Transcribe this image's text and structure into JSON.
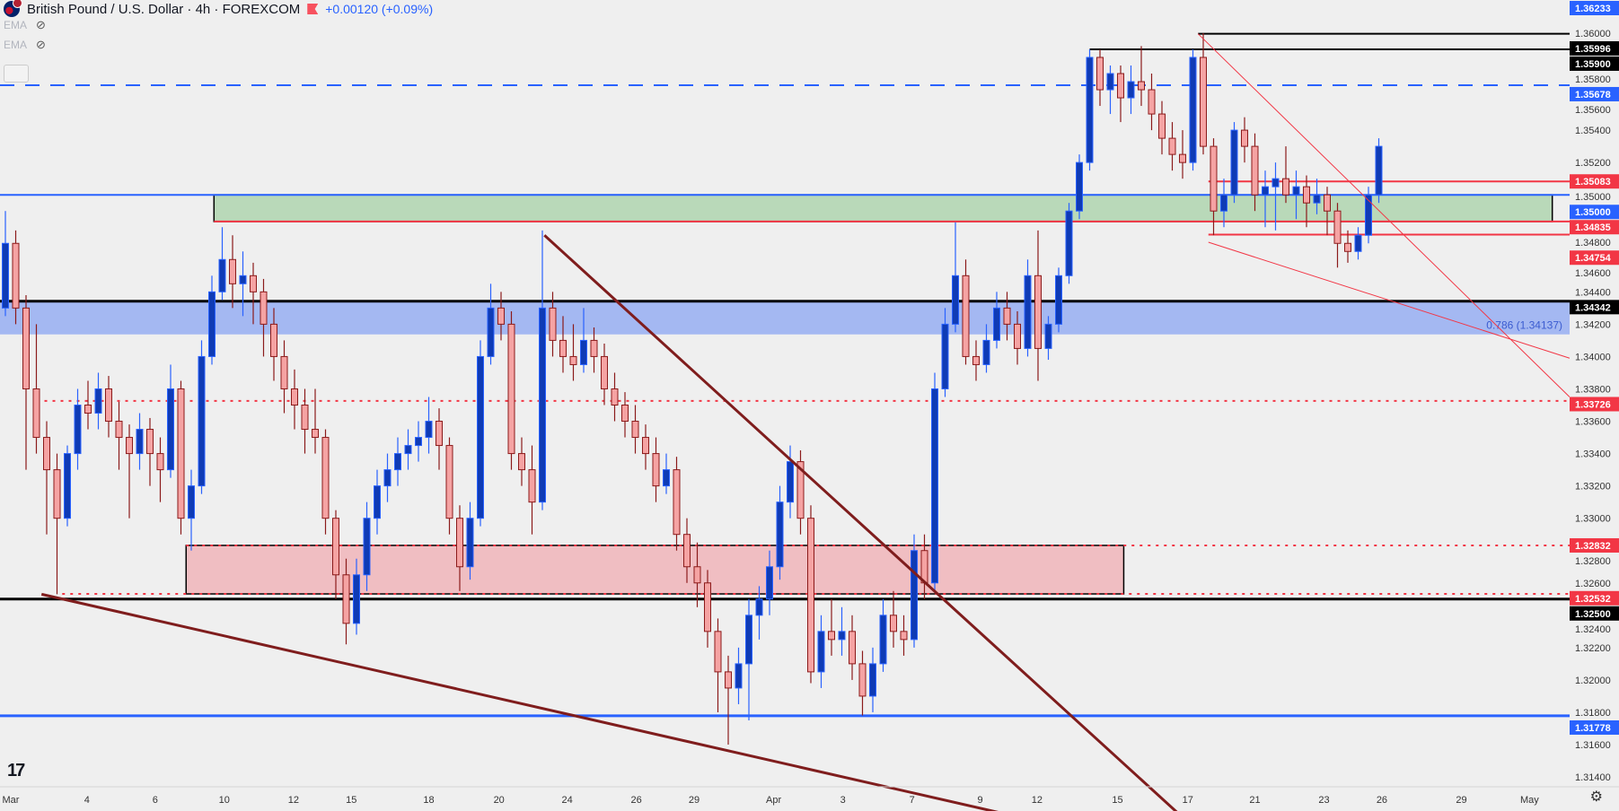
{
  "header": {
    "title": "British Pound / U.S. Dollar · 4h · FOREXCOM",
    "change": "+0.00120 (+0.09%)",
    "indicators": [
      {
        "label": "EMA",
        "icon": "eye-slash-icon"
      },
      {
        "label": "EMA",
        "icon": "eye-slash-icon"
      }
    ]
  },
  "colors": {
    "background": "#efefef",
    "bull_body": "#0f3bb5",
    "bull_border": "#2962ff",
    "bear_body": "#f5a3a3",
    "bear_border": "#8b1a1a",
    "trendline": "#7f1d1d",
    "accent_blue": "#2962ff",
    "accent_red": "#f23645"
  },
  "chart_data": {
    "type": "candlestick",
    "title": "",
    "ylim": [
      1.3125,
      1.3625
    ],
    "grid": false,
    "y_ticks": [
      "1.31400",
      "1.31600",
      "1.31800",
      "1.32000",
      "1.32200",
      "1.32400",
      "1.32600",
      "1.32800",
      "1.33000",
      "1.33200",
      "1.33400",
      "1.33600",
      "1.33800",
      "1.34000",
      "1.34200",
      "1.34400",
      "1.34600",
      "1.34800",
      "1.35000",
      "1.35200",
      "1.35400",
      "1.35600",
      "1.35800",
      "1.36000"
    ],
    "x_ticks": [
      {
        "label": "Mar",
        "bar": 0
      },
      {
        "label": "4",
        "bar": 7.9
      },
      {
        "label": "6",
        "bar": 14.5
      },
      {
        "label": "10",
        "bar": 21.2
      },
      {
        "label": "12",
        "bar": 27.9
      },
      {
        "label": "15",
        "bar": 33.5
      },
      {
        "label": "18",
        "bar": 41
      },
      {
        "label": "20",
        "bar": 47.8
      },
      {
        "label": "24",
        "bar": 54.4
      },
      {
        "label": "26",
        "bar": 61.1
      },
      {
        "label": "29",
        "bar": 66.7
      },
      {
        "label": "Apr",
        "bar": 74.4
      },
      {
        "label": "3",
        "bar": 81.1
      },
      {
        "label": "7",
        "bar": 87.8
      },
      {
        "label": "9",
        "bar": 94.4
      },
      {
        "label": "12",
        "bar": 99.9
      },
      {
        "label": "15",
        "bar": 107.7
      },
      {
        "label": "17",
        "bar": 114.5
      },
      {
        "label": "21",
        "bar": 121
      },
      {
        "label": "23",
        "bar": 127.7
      },
      {
        "label": "26",
        "bar": 133.3
      },
      {
        "label": "29",
        "bar": 141
      },
      {
        "label": "May",
        "bar": 147.6
      }
    ],
    "candles_ohlc": [
      [
        1.343,
        1.349,
        1.3425,
        1.347
      ],
      [
        1.347,
        1.3478,
        1.342,
        1.343
      ],
      [
        1.343,
        1.3438,
        1.333,
        1.338
      ],
      [
        1.338,
        1.342,
        1.334,
        1.335
      ],
      [
        1.335,
        1.336,
        1.329,
        1.333
      ],
      [
        1.333,
        1.334,
        1.3253,
        1.33
      ],
      [
        1.33,
        1.3345,
        1.3295,
        1.334
      ],
      [
        1.334,
        1.338,
        1.333,
        1.337
      ],
      [
        1.337,
        1.3385,
        1.3355,
        1.3365
      ],
      [
        1.3365,
        1.339,
        1.3355,
        1.338
      ],
      [
        1.338,
        1.3388,
        1.335,
        1.336
      ],
      [
        1.336,
        1.3372,
        1.333,
        1.335
      ],
      [
        1.335,
        1.3358,
        1.33,
        1.334
      ],
      [
        1.334,
        1.3365,
        1.333,
        1.3355
      ],
      [
        1.3355,
        1.3362,
        1.332,
        1.334
      ],
      [
        1.334,
        1.335,
        1.331,
        1.333
      ],
      [
        1.333,
        1.3395,
        1.3325,
        1.338
      ],
      [
        1.338,
        1.3385,
        1.329,
        1.33
      ],
      [
        1.33,
        1.333,
        1.328,
        1.332
      ],
      [
        1.332,
        1.341,
        1.3315,
        1.34
      ],
      [
        1.34,
        1.345,
        1.3395,
        1.344
      ],
      [
        1.344,
        1.348,
        1.3435,
        1.346
      ],
      [
        1.346,
        1.3475,
        1.343,
        1.3445
      ],
      [
        1.3445,
        1.3465,
        1.3425,
        1.345
      ],
      [
        1.345,
        1.3458,
        1.342,
        1.344
      ],
      [
        1.344,
        1.3448,
        1.34,
        1.342
      ],
      [
        1.342,
        1.343,
        1.3385,
        1.34
      ],
      [
        1.34,
        1.341,
        1.3365,
        1.338
      ],
      [
        1.338,
        1.3392,
        1.3355,
        1.337
      ],
      [
        1.337,
        1.338,
        1.334,
        1.3355
      ],
      [
        1.3355,
        1.338,
        1.334,
        1.335
      ],
      [
        1.335,
        1.3355,
        1.329,
        1.33
      ],
      [
        1.33,
        1.3305,
        1.325,
        1.3265
      ],
      [
        1.3265,
        1.3275,
        1.3222,
        1.3235
      ],
      [
        1.3235,
        1.3275,
        1.3228,
        1.3265
      ],
      [
        1.3265,
        1.331,
        1.3255,
        1.33
      ],
      [
        1.33,
        1.333,
        1.329,
        1.332
      ],
      [
        1.332,
        1.334,
        1.331,
        1.333
      ],
      [
        1.333,
        1.335,
        1.332,
        1.334
      ],
      [
        1.334,
        1.3355,
        1.333,
        1.3345
      ],
      [
        1.3345,
        1.336,
        1.3335,
        1.335
      ],
      [
        1.335,
        1.3375,
        1.334,
        1.336
      ],
      [
        1.336,
        1.3368,
        1.333,
        1.3345
      ],
      [
        1.3345,
        1.335,
        1.329,
        1.33
      ],
      [
        1.33,
        1.3308,
        1.3255,
        1.327
      ],
      [
        1.327,
        1.331,
        1.3262,
        1.33
      ],
      [
        1.33,
        1.341,
        1.3295,
        1.34
      ],
      [
        1.34,
        1.3445,
        1.3395,
        1.343
      ],
      [
        1.343,
        1.344,
        1.341,
        1.342
      ],
      [
        1.342,
        1.3428,
        1.333,
        1.334
      ],
      [
        1.334,
        1.335,
        1.332,
        1.333
      ],
      [
        1.333,
        1.3345,
        1.329,
        1.331
      ],
      [
        1.331,
        1.3478,
        1.3305,
        1.343
      ],
      [
        1.343,
        1.344,
        1.34,
        1.341
      ],
      [
        1.341,
        1.3425,
        1.339,
        1.34
      ],
      [
        1.34,
        1.342,
        1.3385,
        1.3395
      ],
      [
        1.3395,
        1.343,
        1.339,
        1.341
      ],
      [
        1.341,
        1.3418,
        1.339,
        1.34
      ],
      [
        1.34,
        1.3408,
        1.337,
        1.338
      ],
      [
        1.338,
        1.339,
        1.336,
        1.337
      ],
      [
        1.337,
        1.3378,
        1.335,
        1.336
      ],
      [
        1.336,
        1.337,
        1.334,
        1.335
      ],
      [
        1.335,
        1.3358,
        1.333,
        1.334
      ],
      [
        1.334,
        1.335,
        1.331,
        1.332
      ],
      [
        1.332,
        1.334,
        1.3315,
        1.333
      ],
      [
        1.333,
        1.3338,
        1.328,
        1.329
      ],
      [
        1.329,
        1.33,
        1.326,
        1.327
      ],
      [
        1.327,
        1.3285,
        1.3245,
        1.326
      ],
      [
        1.326,
        1.3268,
        1.322,
        1.323
      ],
      [
        1.323,
        1.3238,
        1.318,
        1.3205
      ],
      [
        1.3205,
        1.3215,
        1.316,
        1.3195
      ],
      [
        1.3195,
        1.322,
        1.3185,
        1.321
      ],
      [
        1.321,
        1.325,
        1.3175,
        1.324
      ],
      [
        1.324,
        1.3258,
        1.3225,
        1.325
      ],
      [
        1.325,
        1.328,
        1.324,
        1.327
      ],
      [
        1.327,
        1.332,
        1.3262,
        1.331
      ],
      [
        1.331,
        1.3345,
        1.33,
        1.3335
      ],
      [
        1.3335,
        1.3342,
        1.329,
        1.33
      ],
      [
        1.33,
        1.3308,
        1.3198,
        1.3205
      ],
      [
        1.3205,
        1.324,
        1.3195,
        1.323
      ],
      [
        1.323,
        1.325,
        1.3215,
        1.3225
      ],
      [
        1.3225,
        1.3245,
        1.3215,
        1.323
      ],
      [
        1.323,
        1.324,
        1.32,
        1.321
      ],
      [
        1.321,
        1.3218,
        1.3178,
        1.319
      ],
      [
        1.319,
        1.322,
        1.318,
        1.321
      ],
      [
        1.321,
        1.325,
        1.3205,
        1.324
      ],
      [
        1.324,
        1.3255,
        1.322,
        1.323
      ],
      [
        1.323,
        1.324,
        1.3215,
        1.3225
      ],
      [
        1.3225,
        1.329,
        1.322,
        1.328
      ],
      [
        1.328,
        1.329,
        1.325,
        1.326
      ],
      [
        1.326,
        1.339,
        1.3255,
        1.338
      ],
      [
        1.338,
        1.343,
        1.3375,
        1.342
      ],
      [
        1.342,
        1.3483,
        1.3415,
        1.345
      ],
      [
        1.345,
        1.346,
        1.3395,
        1.34
      ],
      [
        1.34,
        1.341,
        1.3385,
        1.3395
      ],
      [
        1.3395,
        1.342,
        1.339,
        1.341
      ],
      [
        1.341,
        1.344,
        1.3405,
        1.343
      ],
      [
        1.343,
        1.344,
        1.341,
        1.342
      ],
      [
        1.342,
        1.3428,
        1.3395,
        1.3405
      ],
      [
        1.3405,
        1.346,
        1.34,
        1.345
      ],
      [
        1.345,
        1.3478,
        1.3385,
        1.3405
      ],
      [
        1.3405,
        1.3425,
        1.3398,
        1.342
      ],
      [
        1.342,
        1.3455,
        1.3415,
        1.345
      ],
      [
        1.345,
        1.3495,
        1.3445,
        1.349
      ],
      [
        1.349,
        1.3525,
        1.3485,
        1.352
      ],
      [
        1.352,
        1.359,
        1.3515,
        1.3585
      ],
      [
        1.3585,
        1.359,
        1.3555,
        1.3565
      ],
      [
        1.3565,
        1.358,
        1.355,
        1.3575
      ],
      [
        1.3575,
        1.358,
        1.3545,
        1.356
      ],
      [
        1.356,
        1.358,
        1.355,
        1.357
      ],
      [
        1.357,
        1.3592,
        1.3555,
        1.3565
      ],
      [
        1.3565,
        1.3575,
        1.354,
        1.355
      ],
      [
        1.355,
        1.3558,
        1.3525,
        1.3535
      ],
      [
        1.3535,
        1.3545,
        1.3515,
        1.3525
      ],
      [
        1.3525,
        1.354,
        1.351,
        1.352
      ],
      [
        1.352,
        1.359,
        1.3515,
        1.3585
      ],
      [
        1.3585,
        1.36,
        1.3525,
        1.353
      ],
      [
        1.353,
        1.3535,
        1.3475,
        1.349
      ],
      [
        1.349,
        1.351,
        1.348,
        1.35
      ],
      [
        1.35,
        1.3545,
        1.3495,
        1.354
      ],
      [
        1.354,
        1.3548,
        1.352,
        1.353
      ],
      [
        1.353,
        1.3538,
        1.349,
        1.35
      ],
      [
        1.35,
        1.3515,
        1.348,
        1.3505
      ],
      [
        1.3505,
        1.352,
        1.3478,
        1.351
      ],
      [
        1.351,
        1.353,
        1.3495,
        1.35
      ],
      [
        1.35,
        1.3515,
        1.3485,
        1.3505
      ],
      [
        1.3505,
        1.3512,
        1.348,
        1.3495
      ],
      [
        1.3495,
        1.351,
        1.3488,
        1.35
      ],
      [
        1.35,
        1.3505,
        1.3475,
        1.349
      ],
      [
        1.349,
        1.3495,
        1.3455,
        1.347
      ],
      [
        1.347,
        1.3478,
        1.3458,
        1.3465
      ],
      [
        1.3465,
        1.348,
        1.346,
        1.3475
      ],
      [
        1.3475,
        1.3505,
        1.347,
        1.35
      ],
      [
        1.35,
        1.3535,
        1.3495,
        1.353
      ]
    ],
    "zones": [
      {
        "name": "resistance-zone",
        "from": 1.34835,
        "to": 1.35,
        "start_bar": 20.2,
        "end_bar": 149.8,
        "fill": "#b9d9b9"
      },
      {
        "name": "fib-zone",
        "from": 1.34137,
        "to": 1.34342,
        "start_bar": null,
        "end_bar": null,
        "fill": "#a4b8f2",
        "label": "0.786 (1.34137)"
      },
      {
        "name": "support-zone",
        "from": 1.32532,
        "to": 1.32832,
        "start_bar": 17.5,
        "end_bar": 108.3,
        "fill": "#f0bec2"
      }
    ],
    "levels": [
      {
        "price": 1.36233,
        "label": "1.36233",
        "style": "none",
        "color": "#2962ff",
        "start_bar": null
      },
      {
        "price": 1.35996,
        "label": "1.35996",
        "style": "solid",
        "color": "#000000",
        "start_bar": 115.5
      },
      {
        "price": 1.359,
        "label": "1.35900",
        "style": "solid",
        "color": "#000000",
        "start_bar": 105
      },
      {
        "price": 1.35678,
        "label": "1.35678",
        "style": "dashed",
        "color": "#2962ff",
        "start_bar": null
      },
      {
        "price": 1.35083,
        "label": "1.35083",
        "style": "solid",
        "color": "#f23645",
        "start_bar": 116.5
      },
      {
        "price": 1.35,
        "label": "1.35000",
        "style": "solid",
        "color": "#2962ff",
        "start_bar": null
      },
      {
        "price": 1.34835,
        "label": "1.34835",
        "style": "solid",
        "color": "#f23645",
        "start_bar": 20.2
      },
      {
        "price": 1.34754,
        "label": "1.34754",
        "style": "solid",
        "color": "#f23645",
        "start_bar": 116.5
      },
      {
        "price": 1.34342,
        "label": "1.34342",
        "style": "thick",
        "color": "#000000",
        "start_bar": null
      },
      {
        "price": 1.33726,
        "label": "1.33726",
        "style": "dotted",
        "color": "#f23645",
        "start_bar": 3
      },
      {
        "price": 1.32832,
        "label": "1.32832",
        "style": "dotted",
        "color": "#f23645",
        "start_bar": 17.5
      },
      {
        "price": 1.32532,
        "label": "1.32532",
        "style": "dotted",
        "color": "#f23645",
        "start_bar": 5.5
      },
      {
        "price": 1.325,
        "label": "1.32500",
        "style": "thick",
        "color": "#000000",
        "start_bar": null
      },
      {
        "price": 1.31778,
        "label": "1.31778",
        "style": "thick",
        "color": "#2962ff",
        "start_bar": null
      }
    ],
    "trendlines": [
      {
        "from": [
          3.5,
          1.3253
        ],
        "to": [
          98.3,
          1.3115
        ],
        "color": "#7f1d1d",
        "width": 3
      },
      {
        "from": [
          52.2,
          1.3475
        ],
        "to": [
          114,
          1.3115
        ],
        "color": "#7f1d1d",
        "width": 3
      },
      {
        "from": [
          115.5,
          1.35996
        ],
        "to": [
          151.5,
          1.3375
        ],
        "color": "#f23645",
        "width": 1
      },
      {
        "from": [
          116.5,
          1.34707
        ],
        "to": [
          151.5,
          1.3399
        ],
        "color": "#f23645",
        "width": 1
      }
    ]
  }
}
